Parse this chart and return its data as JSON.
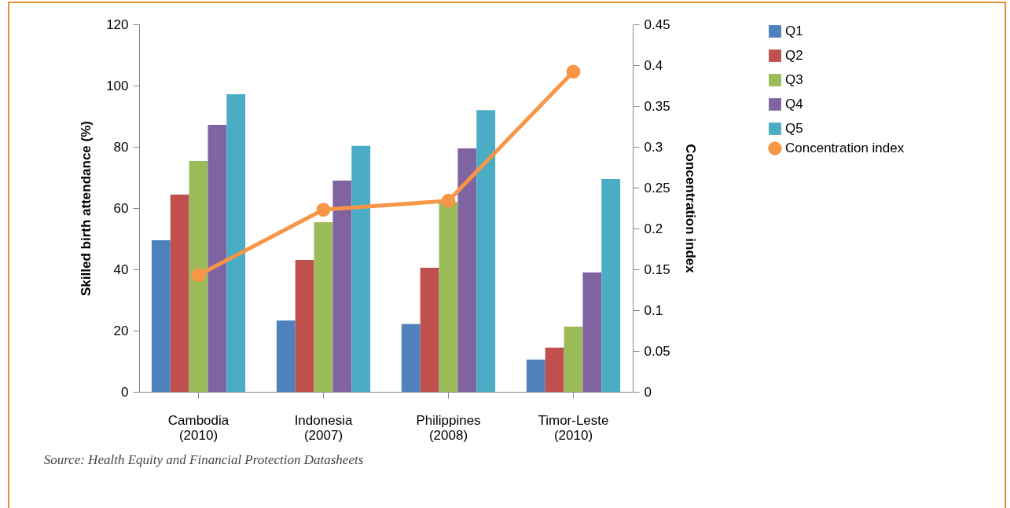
{
  "chart_data": {
    "type": "bar",
    "categories": [
      "Cambodia (2010)",
      "Indonesia (2007)",
      "Philippines (2008)",
      "Timor-Leste (2010)"
    ],
    "ylabel": "Skilled birth attendance (%)",
    "y2label": "Concentration index",
    "ylim": [
      0,
      120
    ],
    "yticks": [
      0,
      20,
      40,
      60,
      80,
      100,
      120
    ],
    "y2lim": [
      0,
      0.45
    ],
    "y2ticks": [
      0,
      0.05,
      0.1,
      0.15,
      0.2,
      0.25,
      0.3,
      0.35,
      0.4,
      0.45
    ],
    "legend": "right",
    "marker": "circle",
    "series": [
      {
        "name": "Q1",
        "color": "#4f81bd",
        "values": [
          49.5,
          23.3,
          22.1,
          10.5
        ]
      },
      {
        "name": "Q2",
        "color": "#c0504d",
        "values": [
          64.4,
          43.1,
          40.5,
          14.4
        ]
      },
      {
        "name": "Q3",
        "color": "#9bbb59",
        "values": [
          75.4,
          55.4,
          62,
          21.3
        ]
      },
      {
        "name": "Q4",
        "color": "#8064a2",
        "values": [
          87.2,
          69,
          79.5,
          39
        ]
      },
      {
        "name": "Q5",
        "color": "#4bacc6",
        "values": [
          97.2,
          80.3,
          92,
          69.5
        ]
      },
      {
        "name": "Concentration index",
        "type": "line",
        "axis": "y2",
        "color": "#f79646",
        "values": [
          0.143,
          0.223,
          0.234,
          0.392
        ]
      }
    ],
    "annotations": [
      "Source: Health Equity and Financial Protection Datasheets"
    ]
  }
}
